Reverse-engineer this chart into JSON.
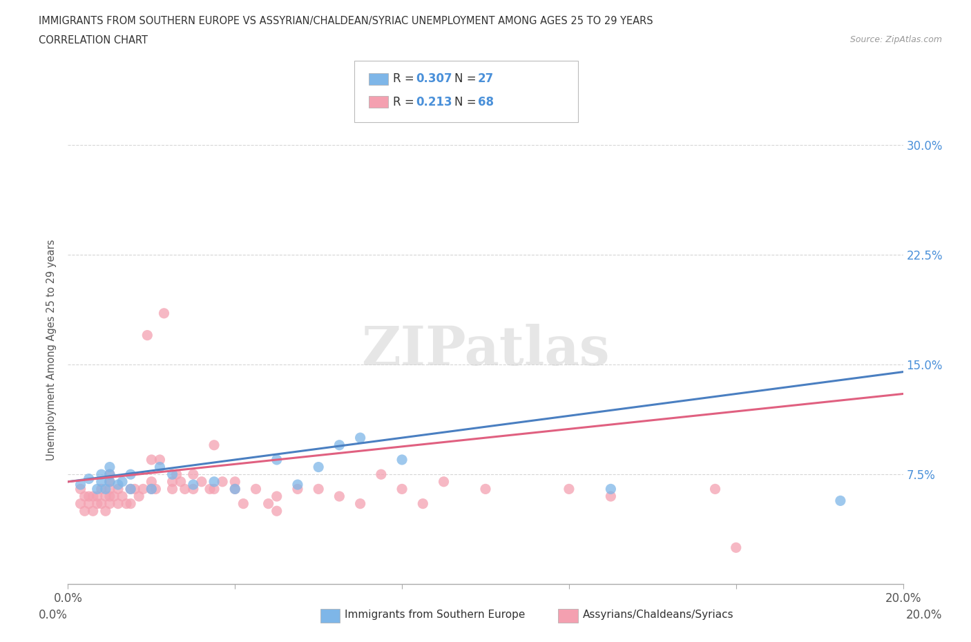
{
  "title_line1": "IMMIGRANTS FROM SOUTHERN EUROPE VS ASSYRIAN/CHALDEAN/SYRIAC UNEMPLOYMENT AMONG AGES 25 TO 29 YEARS",
  "title_line2": "CORRELATION CHART",
  "source": "Source: ZipAtlas.com",
  "ylabel": "Unemployment Among Ages 25 to 29 years",
  "xlim": [
    0.0,
    0.2
  ],
  "ylim": [
    0.0,
    0.32
  ],
  "xticks": [
    0.0,
    0.04,
    0.08,
    0.12,
    0.16,
    0.2
  ],
  "ytick_positions": [
    0.0,
    0.075,
    0.15,
    0.225,
    0.3
  ],
  "ytick_labels": [
    "",
    "7.5%",
    "15.0%",
    "22.5%",
    "30.0%"
  ],
  "watermark": "ZIPatlas",
  "blue_color": "#7EB6E8",
  "pink_color": "#F4A0B0",
  "blue_line_color": "#4A7FC1",
  "pink_line_color": "#E06080",
  "legend_R1": "0.307",
  "legend_N1": "27",
  "legend_R2": "0.213",
  "legend_N2": "68",
  "grid_color": "#CCCCCC",
  "blue_scatter_x": [
    0.003,
    0.005,
    0.007,
    0.008,
    0.008,
    0.009,
    0.01,
    0.01,
    0.01,
    0.012,
    0.013,
    0.015,
    0.015,
    0.02,
    0.022,
    0.025,
    0.03,
    0.035,
    0.04,
    0.05,
    0.055,
    0.06,
    0.065,
    0.07,
    0.08,
    0.13,
    0.185
  ],
  "blue_scatter_y": [
    0.068,
    0.072,
    0.065,
    0.07,
    0.075,
    0.065,
    0.07,
    0.075,
    0.08,
    0.068,
    0.07,
    0.065,
    0.075,
    0.065,
    0.08,
    0.075,
    0.068,
    0.07,
    0.065,
    0.085,
    0.068,
    0.08,
    0.095,
    0.1,
    0.085,
    0.065,
    0.057
  ],
  "pink_scatter_x": [
    0.003,
    0.003,
    0.004,
    0.004,
    0.005,
    0.005,
    0.006,
    0.006,
    0.007,
    0.007,
    0.008,
    0.008,
    0.009,
    0.009,
    0.01,
    0.01,
    0.01,
    0.01,
    0.01,
    0.011,
    0.012,
    0.012,
    0.013,
    0.014,
    0.015,
    0.015,
    0.016,
    0.017,
    0.018,
    0.019,
    0.02,
    0.02,
    0.02,
    0.021,
    0.022,
    0.023,
    0.025,
    0.025,
    0.026,
    0.027,
    0.028,
    0.03,
    0.03,
    0.032,
    0.034,
    0.035,
    0.035,
    0.037,
    0.04,
    0.04,
    0.042,
    0.045,
    0.048,
    0.05,
    0.05,
    0.055,
    0.06,
    0.065,
    0.07,
    0.075,
    0.08,
    0.085,
    0.09,
    0.1,
    0.12,
    0.13,
    0.155,
    0.16
  ],
  "pink_scatter_y": [
    0.065,
    0.055,
    0.06,
    0.05,
    0.06,
    0.055,
    0.06,
    0.05,
    0.055,
    0.06,
    0.065,
    0.055,
    0.05,
    0.06,
    0.065,
    0.07,
    0.055,
    0.06,
    0.075,
    0.06,
    0.055,
    0.065,
    0.06,
    0.055,
    0.065,
    0.055,
    0.065,
    0.06,
    0.065,
    0.17,
    0.065,
    0.085,
    0.07,
    0.065,
    0.085,
    0.185,
    0.07,
    0.065,
    0.075,
    0.07,
    0.065,
    0.075,
    0.065,
    0.07,
    0.065,
    0.095,
    0.065,
    0.07,
    0.065,
    0.07,
    0.055,
    0.065,
    0.055,
    0.05,
    0.06,
    0.065,
    0.065,
    0.06,
    0.055,
    0.075,
    0.065,
    0.055,
    0.07,
    0.065,
    0.065,
    0.06,
    0.065,
    0.025
  ]
}
